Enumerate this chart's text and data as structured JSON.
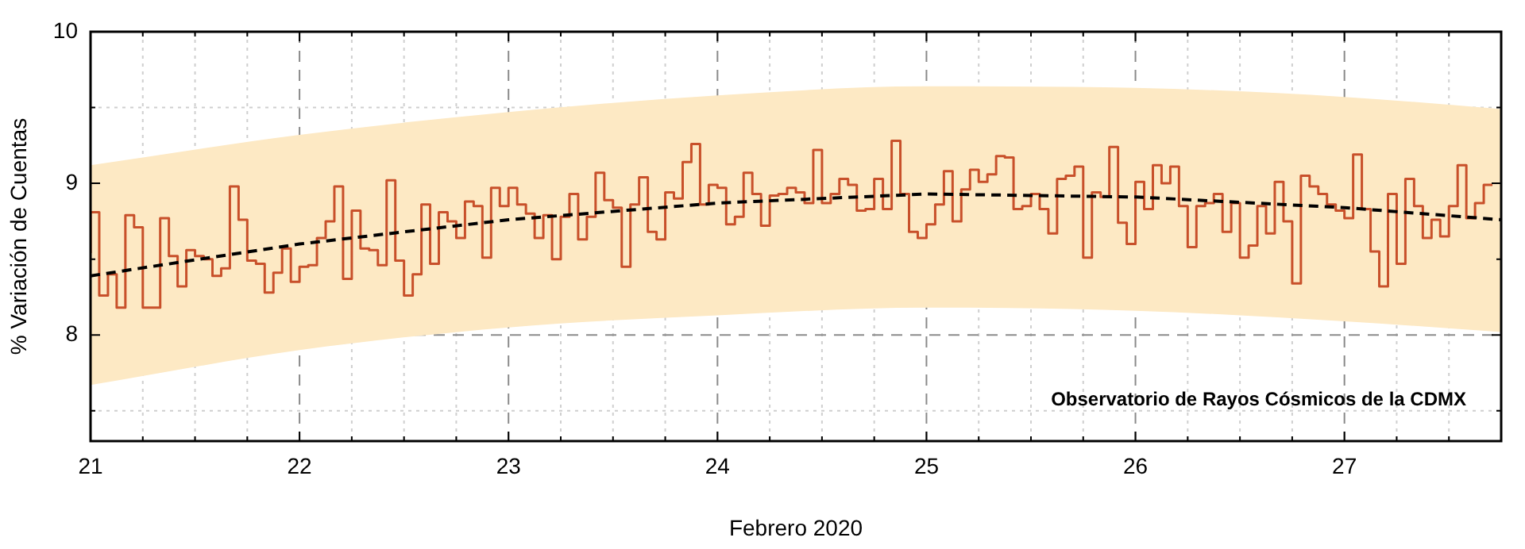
{
  "chart_data": {
    "type": "step",
    "xlabel": "Febrero 2020",
    "ylabel": "% Variación de Cuentas",
    "annotations": [
      "Observatorio de Rayos Cósmicos de la CDMX"
    ],
    "xlim": [
      "2020-02-21",
      "2020-02-27T18:00"
    ],
    "xticks": [
      {
        "value": "2020-02-21",
        "label": "21"
      },
      {
        "value": "2020-02-21T06:00",
        "label": null
      },
      {
        "value": "2020-02-21T12:00",
        "label": null
      },
      {
        "value": "2020-02-21T18:00",
        "label": null
      },
      {
        "value": "2020-02-22",
        "label": "22"
      },
      {
        "value": "2020-02-22T06:00",
        "label": null
      },
      {
        "value": "2020-02-22T12:00",
        "label": null
      },
      {
        "value": "2020-02-22T18:00",
        "label": null
      },
      {
        "value": "2020-02-23",
        "label": "23"
      },
      {
        "value": "2020-02-23T06:00",
        "label": null
      },
      {
        "value": "2020-02-23T12:00",
        "label": null
      },
      {
        "value": "2020-02-23T18:00",
        "label": null
      },
      {
        "value": "2020-02-24",
        "label": "24"
      },
      {
        "value": "2020-02-24T06:00",
        "label": null
      },
      {
        "value": "2020-02-24T12:00",
        "label": null
      },
      {
        "value": "2020-02-24T18:00",
        "label": null
      },
      {
        "value": "2020-02-25",
        "label": "25"
      },
      {
        "value": "2020-02-25T06:00",
        "label": null
      },
      {
        "value": "2020-02-25T12:00",
        "label": null
      },
      {
        "value": "2020-02-25T18:00",
        "label": null
      },
      {
        "value": "2020-02-26",
        "label": "26"
      },
      {
        "value": "2020-02-26T06:00",
        "label": null
      },
      {
        "value": "2020-02-26T12:00",
        "label": null
      },
      {
        "value": "2020-02-26T18:00",
        "label": null
      },
      {
        "value": "2020-02-27",
        "label": "27"
      },
      {
        "value": "2020-02-27T06:00",
        "label": null
      },
      {
        "value": "2020-02-27T12:00",
        "label": null
      }
    ],
    "ylim": [
      7.3,
      10
    ],
    "yticks": [
      {
        "value": 7.5,
        "label": null
      },
      8,
      {
        "value": 8.5,
        "label": null
      },
      9,
      {
        "value": 9.5,
        "label": null
      },
      10
    ],
    "grid": true,
    "series": [
      {
        "color": "#c8502a",
        "x": [
          "2020-02-21T00:00",
          "2020-02-21T01:00",
          "2020-02-21T02:00",
          "2020-02-21T03:00",
          "2020-02-21T04:00",
          "2020-02-21T05:00",
          "2020-02-21T06:00",
          "2020-02-21T07:00",
          "2020-02-21T08:00",
          "2020-02-21T09:00",
          "2020-02-21T10:00",
          "2020-02-21T11:00",
          "2020-02-21T12:00",
          "2020-02-21T13:00",
          "2020-02-21T14:00",
          "2020-02-21T15:00",
          "2020-02-21T16:00",
          "2020-02-21T17:00",
          "2020-02-21T18:00",
          "2020-02-21T19:00",
          "2020-02-21T20:00",
          "2020-02-21T21:00",
          "2020-02-21T22:00",
          "2020-02-21T23:00",
          "2020-02-22T00:00",
          "2020-02-22T01:00",
          "2020-02-22T02:00",
          "2020-02-22T03:00",
          "2020-02-22T04:00",
          "2020-02-22T05:00",
          "2020-02-22T06:00",
          "2020-02-22T07:00",
          "2020-02-22T08:00",
          "2020-02-22T09:00",
          "2020-02-22T10:00",
          "2020-02-22T11:00",
          "2020-02-22T12:00",
          "2020-02-22T13:00",
          "2020-02-22T14:00",
          "2020-02-22T15:00",
          "2020-02-22T16:00",
          "2020-02-22T17:00",
          "2020-02-22T18:00",
          "2020-02-22T19:00",
          "2020-02-22T20:00",
          "2020-02-22T21:00",
          "2020-02-22T22:00",
          "2020-02-22T23:00",
          "2020-02-23T00:00",
          "2020-02-23T01:00",
          "2020-02-23T02:00",
          "2020-02-23T03:00",
          "2020-02-23T04:00",
          "2020-02-23T05:00",
          "2020-02-23T06:00",
          "2020-02-23T07:00",
          "2020-02-23T08:00",
          "2020-02-23T09:00",
          "2020-02-23T10:00",
          "2020-02-23T11:00",
          "2020-02-23T12:00",
          "2020-02-23T13:00",
          "2020-02-23T14:00",
          "2020-02-23T15:00",
          "2020-02-23T16:00",
          "2020-02-23T17:00",
          "2020-02-23T18:00",
          "2020-02-23T19:00",
          "2020-02-23T20:00",
          "2020-02-23T21:00",
          "2020-02-23T22:00",
          "2020-02-23T23:00",
          "2020-02-24T00:00",
          "2020-02-24T01:00",
          "2020-02-24T02:00",
          "2020-02-24T03:00",
          "2020-02-24T04:00",
          "2020-02-24T05:00",
          "2020-02-24T06:00",
          "2020-02-24T07:00",
          "2020-02-24T08:00",
          "2020-02-24T09:00",
          "2020-02-24T10:00",
          "2020-02-24T11:00",
          "2020-02-24T12:00",
          "2020-02-24T13:00",
          "2020-02-24T14:00",
          "2020-02-24T15:00",
          "2020-02-24T16:00",
          "2020-02-24T17:00",
          "2020-02-24T18:00",
          "2020-02-24T19:00",
          "2020-02-24T20:00",
          "2020-02-24T21:00",
          "2020-02-24T22:00",
          "2020-02-24T23:00",
          "2020-02-25T00:00",
          "2020-02-25T01:00",
          "2020-02-25T02:00",
          "2020-02-25T03:00",
          "2020-02-25T04:00",
          "2020-02-25T05:00",
          "2020-02-25T06:00",
          "2020-02-25T07:00",
          "2020-02-25T08:00",
          "2020-02-25T09:00",
          "2020-02-25T10:00",
          "2020-02-25T11:00",
          "2020-02-25T12:00",
          "2020-02-25T13:00",
          "2020-02-25T14:00",
          "2020-02-25T15:00",
          "2020-02-25T16:00",
          "2020-02-25T17:00",
          "2020-02-25T18:00",
          "2020-02-25T19:00",
          "2020-02-25T20:00",
          "2020-02-25T21:00",
          "2020-02-25T22:00",
          "2020-02-25T23:00",
          "2020-02-26T00:00",
          "2020-02-26T01:00",
          "2020-02-26T02:00",
          "2020-02-26T03:00",
          "2020-02-26T04:00",
          "2020-02-26T05:00",
          "2020-02-26T06:00",
          "2020-02-26T07:00",
          "2020-02-26T08:00",
          "2020-02-26T09:00",
          "2020-02-26T10:00",
          "2020-02-26T11:00",
          "2020-02-26T12:00",
          "2020-02-26T13:00",
          "2020-02-26T14:00",
          "2020-02-26T15:00",
          "2020-02-26T16:00",
          "2020-02-26T17:00",
          "2020-02-26T18:00",
          "2020-02-26T19:00",
          "2020-02-26T20:00",
          "2020-02-26T21:00",
          "2020-02-26T22:00",
          "2020-02-26T23:00",
          "2020-02-27T00:00",
          "2020-02-27T01:00",
          "2020-02-27T02:00",
          "2020-02-27T03:00",
          "2020-02-27T04:00",
          "2020-02-27T05:00",
          "2020-02-27T06:00",
          "2020-02-27T07:00",
          "2020-02-27T08:00",
          "2020-02-27T09:00",
          "2020-02-27T10:00",
          "2020-02-27T11:00",
          "2020-02-27T12:00",
          "2020-02-27T13:00",
          "2020-02-27T14:00",
          "2020-02-27T15:00",
          "2020-02-27T16:00",
          "2020-02-27T17:00"
        ],
        "values": [
          8.54,
          8.81,
          8.26,
          8.4,
          8.18,
          8.79,
          8.71,
          8.18,
          8.18,
          8.77,
          8.52,
          8.32,
          8.56,
          8.52,
          8.5,
          8.39,
          8.44,
          8.98,
          8.76,
          8.49,
          8.47,
          8.28,
          8.41,
          8.57,
          8.35,
          8.45,
          8.46,
          8.64,
          8.75,
          8.98,
          8.37,
          8.82,
          8.57,
          8.56,
          8.46,
          9.02,
          8.49,
          8.26,
          8.4,
          8.86,
          8.47,
          8.81,
          8.75,
          8.64,
          8.88,
          8.85,
          8.51,
          8.97,
          8.85,
          8.97,
          8.86,
          8.8,
          8.64,
          8.79,
          8.5,
          8.78,
          8.93,
          8.63,
          8.78,
          9.07,
          8.89,
          8.84,
          8.45,
          8.86,
          9.04,
          8.68,
          8.63,
          8.94,
          8.9,
          9.14,
          9.26,
          8.86,
          8.99,
          8.97,
          8.73,
          8.78,
          9.07,
          8.93,
          8.72,
          8.92,
          8.93,
          8.97,
          8.94,
          8.87,
          9.22,
          8.87,
          8.93,
          9.03,
          8.99,
          8.82,
          8.83,
          9.03,
          8.83,
          9.28,
          8.93,
          8.68,
          8.64,
          8.73,
          8.86,
          9.08,
          8.75,
          8.96,
          9.09,
          9.01,
          9.06,
          9.18,
          9.17,
          8.83,
          8.85,
          8.93,
          8.83,
          8.67,
          9.03,
          9.05,
          9.11,
          8.51,
          8.94,
          8.91,
          9.24,
          8.74,
          8.6,
          9.01,
          8.83,
          9.12,
          9.0,
          9.11,
          8.85,
          8.58,
          8.85,
          8.87,
          8.93,
          8.68,
          8.87,
          8.51,
          8.59,
          8.85,
          8.67,
          9.01,
          8.75,
          8.34,
          9.05,
          8.98,
          8.93,
          8.86,
          8.82,
          8.77,
          9.19,
          8.83,
          8.55,
          8.32,
          8.93,
          8.47,
          9.03,
          8.85,
          8.64,
          8.76,
          8.65,
          8.85,
          9.12,
          8.77,
          8.87,
          8.99
        ]
      },
      {
        "type": "line",
        "color": "#000000",
        "line_style": "dashed",
        "x": [
          "2020-02-21",
          "2020-02-22",
          "2020-02-23",
          "2020-02-24",
          "2020-02-25",
          "2020-02-26",
          "2020-02-27",
          "2020-02-27T18:00"
        ],
        "values": [
          8.39,
          8.6,
          8.76,
          8.87,
          8.93,
          8.91,
          8.84,
          8.76
        ],
        "lower": [
          7.67,
          7.9,
          8.05,
          8.13,
          8.18,
          8.16,
          8.09,
          8.02
        ],
        "upper": [
          9.12,
          9.32,
          9.47,
          9.58,
          9.64,
          9.63,
          9.57,
          9.49
        ],
        "colors": [
          "#fde9c4",
          "#fde9c4",
          "#fde9c4",
          "#fde9c4",
          "#fde9c4",
          "#fde9c4",
          "#fde9c4",
          "#fde9c4"
        ]
      }
    ]
  }
}
